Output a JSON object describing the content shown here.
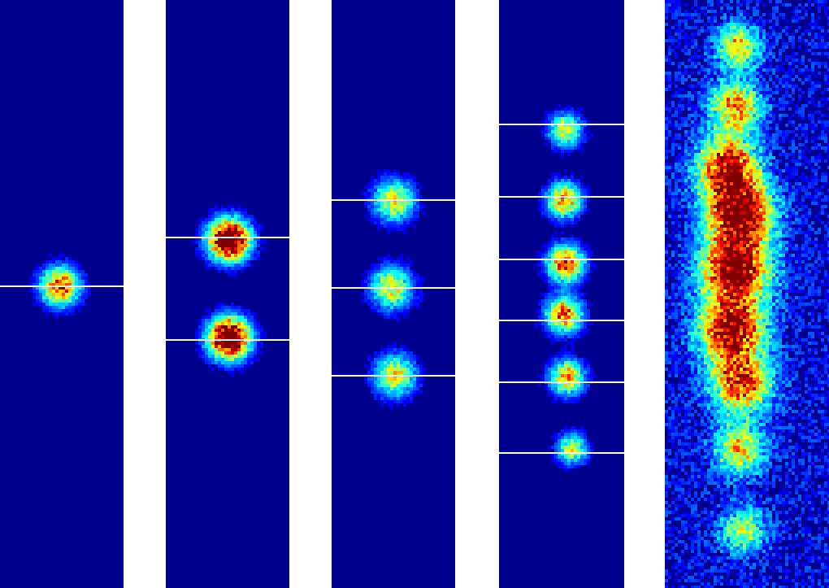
{
  "colors": {
    "background": "#ffffff",
    "field": "#00008f",
    "marker_line": "#ffffff",
    "colormap": "jet"
  },
  "panels": [
    {
      "id": "p1",
      "blob_count": 1,
      "marker_lines": 1
    },
    {
      "id": "p2",
      "blob_count": 2,
      "marker_lines": 2,
      "saturated": true
    },
    {
      "id": "p3",
      "blob_count": 3,
      "marker_lines": 3
    },
    {
      "id": "p4",
      "blob_count": 6,
      "marker_lines": 6
    },
    {
      "id": "p5",
      "blob_count": 8,
      "marker_lines": 0,
      "diffuse": true
    }
  ]
}
